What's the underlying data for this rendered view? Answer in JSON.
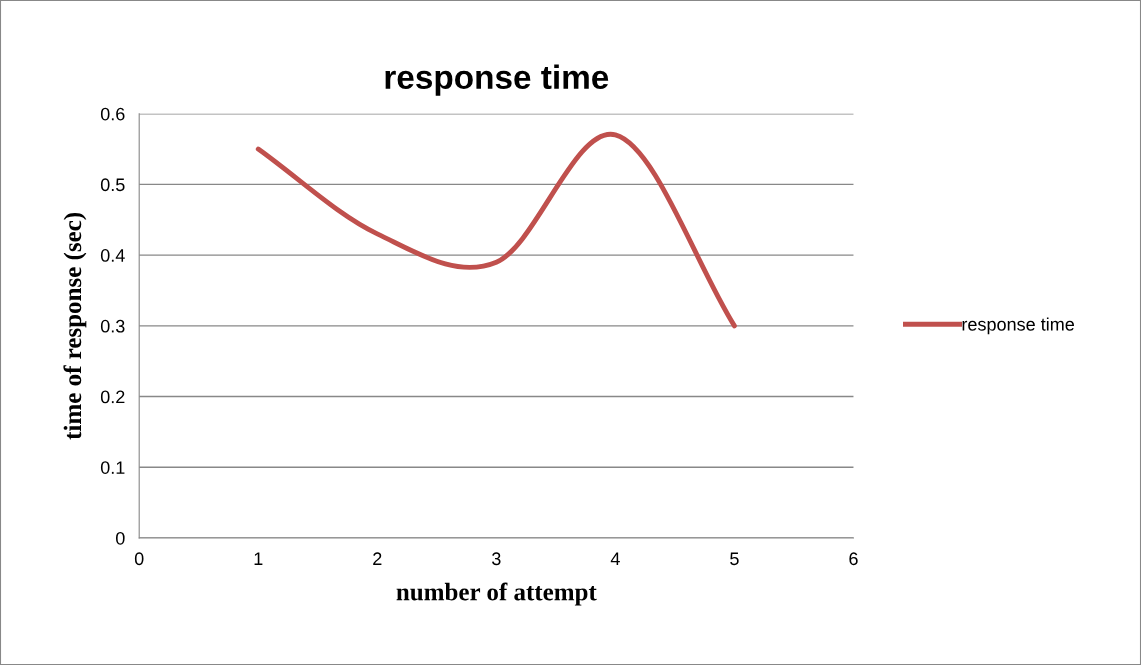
{
  "chart_data": {
    "type": "line",
    "title": "response time",
    "xlabel": "number of attempt",
    "ylabel": "time of response (sec)",
    "x": [
      1,
      2,
      3,
      4,
      5
    ],
    "series": [
      {
        "name": "response time",
        "color": "#c0504d",
        "values": [
          0.55,
          0.43,
          0.39,
          0.57,
          0.3
        ]
      }
    ],
    "xlim": [
      0,
      6
    ],
    "xticks": [
      0,
      1,
      2,
      3,
      4,
      5,
      6
    ],
    "ylim": [
      0,
      0.6
    ],
    "yticks": [
      0,
      0.1,
      0.2,
      0.3,
      0.4,
      0.5,
      0.6
    ],
    "grid": "y",
    "legend": "right",
    "marker": "none",
    "line_style": "solid"
  }
}
